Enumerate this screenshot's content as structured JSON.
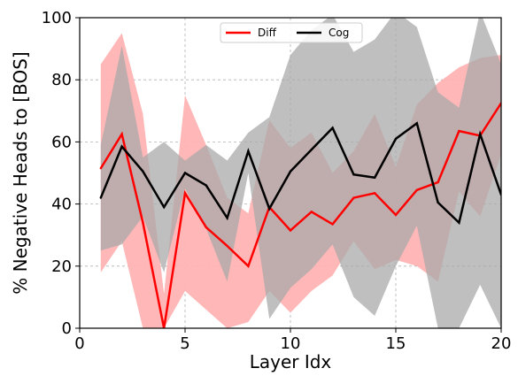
{
  "chart_data": {
    "type": "line",
    "title": "",
    "xlabel": "Layer Idx",
    "ylabel": "% Negative Heads to [BOS]",
    "xlim": [
      0,
      20
    ],
    "ylim": [
      0,
      100
    ],
    "x_ticks": [
      0,
      5,
      10,
      15,
      20
    ],
    "y_ticks": [
      0,
      20,
      40,
      60,
      80,
      100
    ],
    "grid": true,
    "legend_position": "top-center",
    "x": [
      1,
      2,
      3,
      4,
      5,
      6,
      7,
      8,
      9,
      10,
      11,
      12,
      13,
      14,
      15,
      16,
      17,
      18,
      19,
      20
    ],
    "series": [
      {
        "name": "Diff",
        "color": "#ff0000",
        "band_color": "#ffb3b3",
        "mean": [
          51.5,
          62.5,
          34,
          0,
          43.5,
          32.5,
          26.5,
          20,
          39,
          31.5,
          37.5,
          33.5,
          42,
          43.5,
          36.5,
          44.5,
          47,
          63.5,
          62,
          72.5
        ],
        "upper": [
          85,
          95,
          69,
          11,
          75,
          59,
          42,
          37,
          67,
          58,
          63,
          50,
          57,
          69,
          52,
          72,
          79,
          84,
          87,
          88
        ],
        "lower": [
          18,
          28,
          0,
          0,
          12,
          6,
          0,
          2,
          12,
          5,
          12,
          17,
          28,
          19,
          22,
          20,
          15,
          44,
          36,
          56
        ]
      },
      {
        "name": "Cog",
        "color": "#000000",
        "band_color": "#a9a9a9",
        "mean": [
          42,
          58.5,
          50.5,
          39,
          50,
          46,
          35.5,
          57,
          38.5,
          50.5,
          57.5,
          64.5,
          49.5,
          48.5,
          61,
          66,
          40.5,
          34,
          62.5,
          43
        ],
        "upper": [
          59,
          91,
          55,
          60,
          54,
          59,
          54,
          63,
          68,
          88,
          96,
          101,
          89,
          93,
          102,
          97,
          76,
          71,
          102,
          85
        ],
        "lower": [
          25,
          27,
          36,
          18,
          45,
          32,
          15,
          50,
          3,
          13,
          19,
          27,
          10,
          4,
          20,
          33,
          0,
          0,
          14,
          0
        ]
      }
    ]
  }
}
